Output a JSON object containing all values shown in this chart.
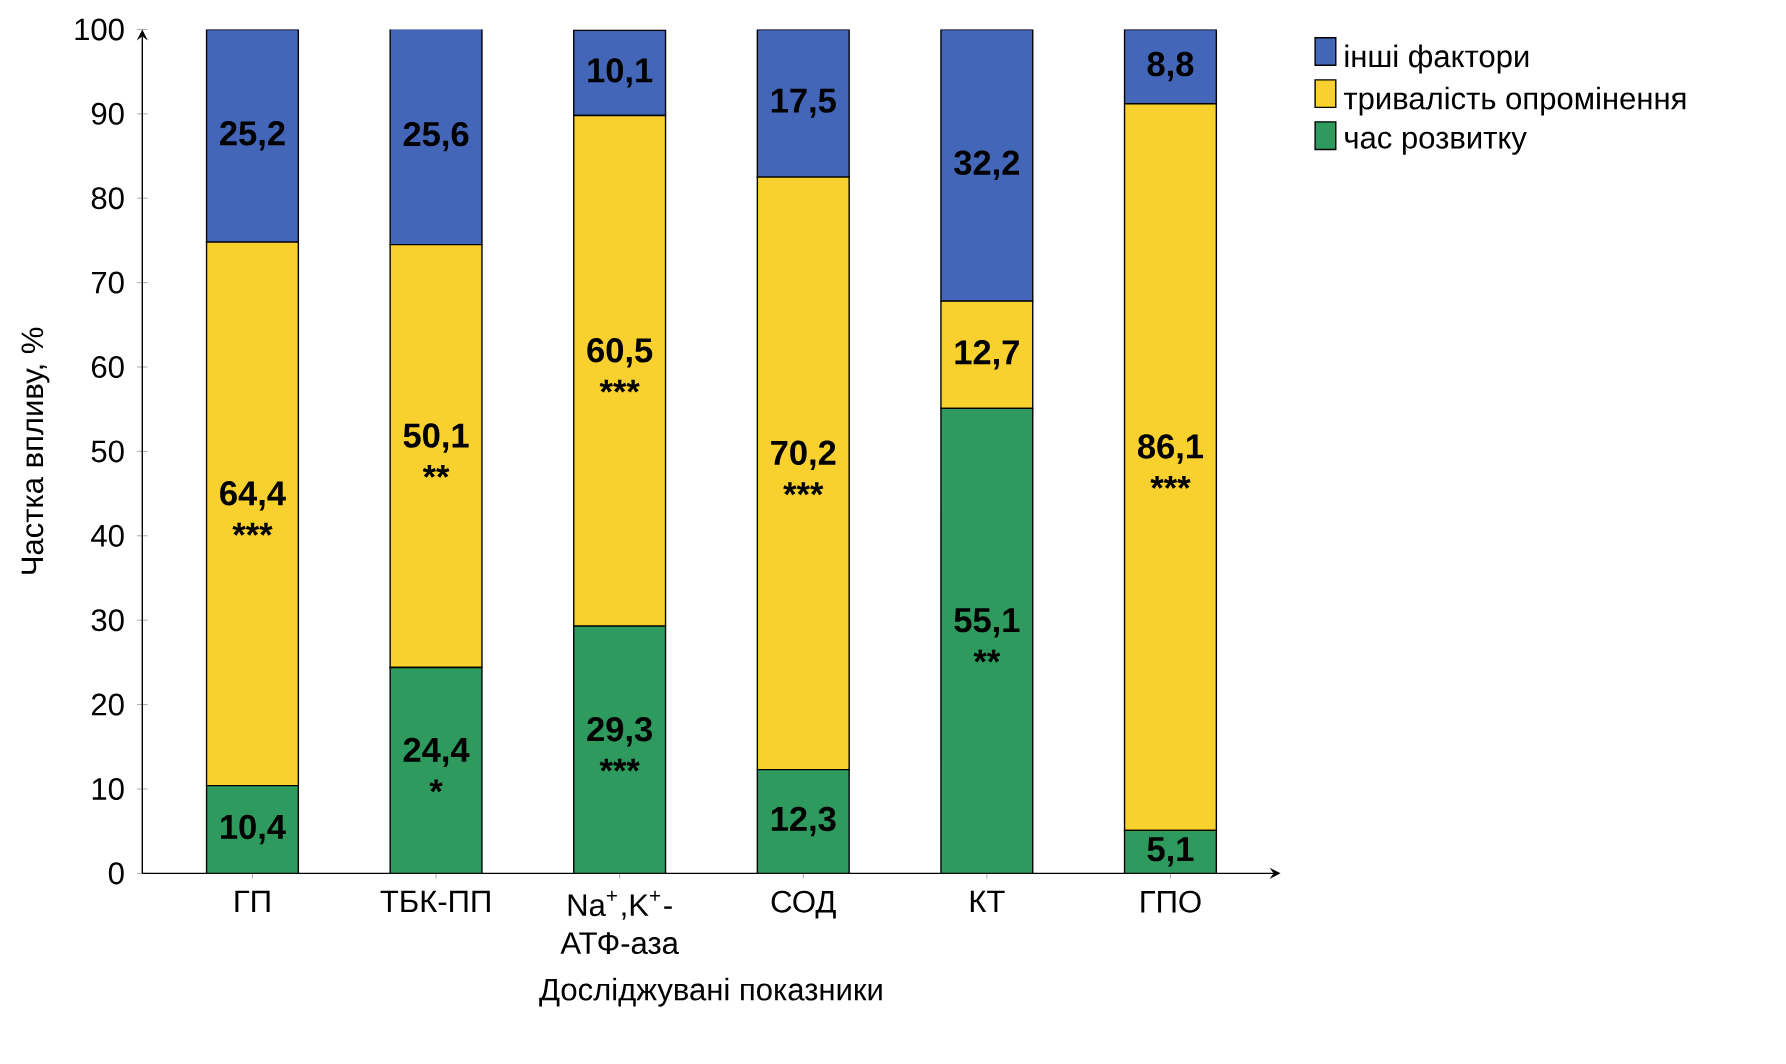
{
  "chart_data": {
    "type": "bar",
    "stacked": true,
    "categories": [
      "ГП",
      "ТБК-ПП",
      "Na$^{+}$,K$^{+}$-АТФ-аза",
      "СОД",
      "КТ",
      "ГПО"
    ],
    "xlabel": "Досліджувані показники",
    "ylabel": "Частка впливу, %",
    "ylim": [
      0,
      100
    ],
    "yticks": [
      0,
      10,
      20,
      30,
      40,
      50,
      60,
      70,
      80,
      90,
      100
    ],
    "series": [
      {
        "name": "час розвитку",
        "color": "#2e9a5e",
        "values": [
          10.4,
          24.4,
          29.3,
          12.3,
          55.1,
          5.1
        ],
        "value_labels": [
          "10,4",
          "24,4 *",
          "29,3 ***",
          "12,3",
          "55,1 **",
          "5,1"
        ]
      },
      {
        "name": "тривалість опромінення",
        "color": "#f9d12e",
        "values": [
          64.4,
          50.1,
          60.5,
          70.2,
          12.7,
          86.1
        ],
        "value_labels": [
          "64,4 ***",
          "50,1 **",
          "60,5 ***",
          "70,2 ***",
          "12,7",
          "86,1 ***"
        ]
      },
      {
        "name": "інші фактори",
        "color": "#4466b8",
        "values": [
          25.2,
          25.6,
          10.1,
          17.5,
          32.2,
          8.8
        ],
        "value_labels": [
          "25,2",
          "25,6",
          "10,1",
          "17,5",
          "32,2",
          "8,8"
        ]
      }
    ],
    "grid": false,
    "legend": "top right"
  }
}
